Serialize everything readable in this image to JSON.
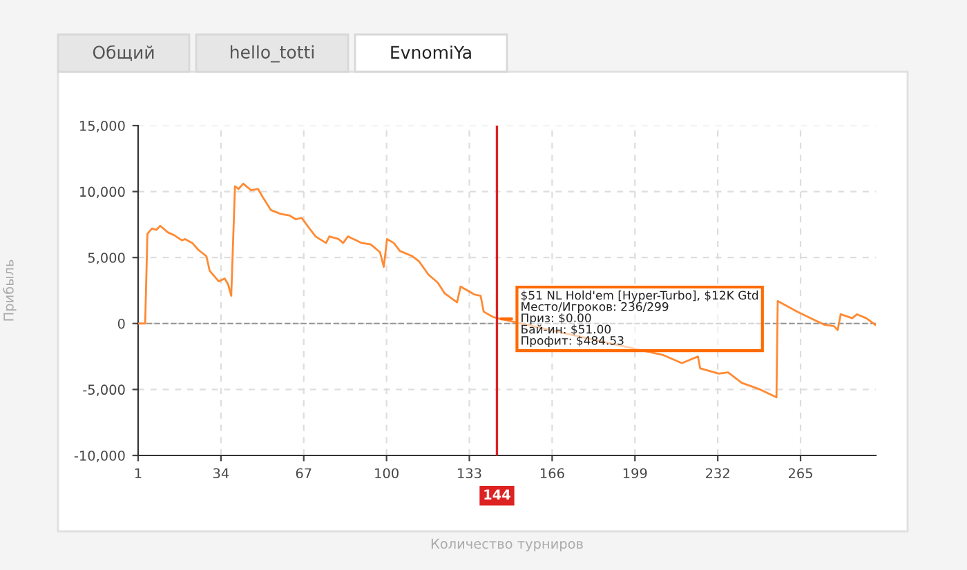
{
  "chart_data": {
    "type": "line",
    "xlabel": "Количество турниров",
    "ylabel": "Прибыль",
    "x": [
      1,
      3.8,
      4.7,
      6.5,
      8.3,
      9.8,
      12.9,
      15.3,
      18.5,
      19.7,
      22.6,
      24.9,
      28.2,
      29.5,
      33.1,
      35.5,
      36.8,
      38.1,
      39.6,
      41,
      42.9,
      46,
      48.8,
      50.6,
      53.9,
      57.9,
      61.2,
      63.8,
      66.2,
      68.9,
      71.7,
      75.9,
      77.2,
      80.9,
      82.7,
      84.6,
      87.9,
      90.1,
      93.7,
      97.4,
      98.9,
      100.2,
      102.9,
      105.3,
      110.3,
      113,
      116.7,
      120.4,
      123.1,
      128.1,
      129.5,
      135,
      137.5,
      138.7,
      142.4,
      144.2,
      210.4,
      217.7,
      224.1,
      225,
      232.4,
      236.1,
      241.6,
      248.9,
      255.4,
      255.9,
      263.6,
      269.1,
      274.6,
      278.3,
      279.8,
      281,
      285.6,
      287.5,
      291.2,
      294.8
    ],
    "series": [
      {
        "color": "#ff8a33",
        "values": [
          0,
          0,
          6800,
          7200,
          7100,
          7400,
          6900,
          6700,
          6300,
          6400,
          6100,
          5600,
          5100,
          4000,
          3200,
          3400,
          3000,
          2100,
          10400,
          10200,
          10600,
          10100,
          10200,
          9600,
          8600,
          8300,
          8200,
          7900,
          8000,
          7300,
          6600,
          6100,
          6600,
          6400,
          6100,
          6600,
          6300,
          6100,
          6000,
          5400,
          4300,
          6400,
          6100,
          5500,
          5100,
          4700,
          3700,
          3100,
          2300,
          1600,
          2800,
          2200,
          2100,
          900,
          500,
          400,
          -2400,
          -3000,
          -2500,
          -3400,
          -3800,
          -3700,
          -4500,
          -5000,
          -5600,
          1700,
          900,
          400,
          -100,
          -200,
          -500,
          700,
          400,
          700,
          400,
          -100
        ]
      }
    ],
    "xlim": [
      1,
      295
    ],
    "xticks": [
      1,
      34,
      67,
      100,
      133,
      166,
      199,
      232,
      265
    ],
    "ylim": [
      -10000,
      15000
    ],
    "yticks": [
      {
        "value": -10000,
        "label": "-10,000"
      },
      {
        "value": -5000,
        "label": "-5,000"
      },
      {
        "value": 0,
        "label": "0"
      },
      {
        "value": 5000,
        "label": "5,000"
      },
      {
        "value": 10000,
        "label": "10,000"
      },
      {
        "value": 15000,
        "label": "15,000"
      }
    ],
    "grid": true,
    "line_style": "solid",
    "marker": "none",
    "ref_lines": [
      {
        "axis": "x",
        "value": 144,
        "label": "144",
        "color": "#dd2222",
        "line_style": "solid"
      },
      {
        "axis": "y",
        "value": 0,
        "color": "#999999",
        "line_style": "dashed"
      }
    ],
    "annotations": [
      "Общий",
      "hello_totti",
      "EvnomiYa",
      {
        "text": "$51 NL Hold'em [Hyper-Turbo], $12K Gtd\nМесто/Игроков: 236/299\nПриз: $0.00\nБай-ин: $51.00\nПрофит: $484.53",
        "x": 144.2,
        "y": 350
      }
    ]
  }
}
